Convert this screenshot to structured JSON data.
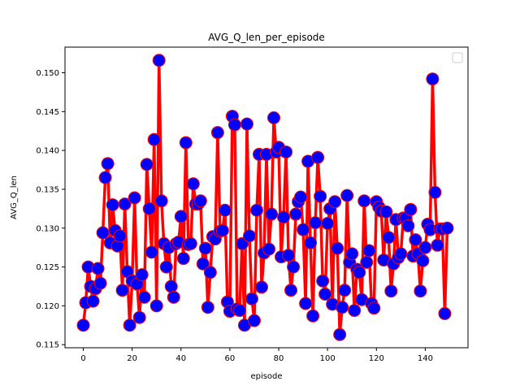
{
  "chart_data": {
    "type": "line",
    "title": "AVG_Q_len_per_episode",
    "xlabel": "episode",
    "ylabel": "AVG_Q_len",
    "xlim": [
      -7.5,
      157.5
    ],
    "ylim": [
      0.1146,
      0.1533
    ],
    "xticks": [
      0,
      20,
      40,
      60,
      80,
      100,
      120,
      140
    ],
    "yticks": [
      0.115,
      0.12,
      0.125,
      0.13,
      0.135,
      0.14,
      0.145,
      0.15
    ],
    "ytick_labels": [
      "0.115",
      "0.120",
      "0.125",
      "0.130",
      "0.135",
      "0.140",
      "0.145",
      "0.150"
    ],
    "grid": false,
    "legend": {
      "placement": "top-right",
      "entries": []
    },
    "series": [
      {
        "line_color": "#ff0000",
        "marker_face_color": "#0000ff",
        "marker_edge_color": "#ff0000",
        "x": [
          0,
          1,
          2,
          3,
          4,
          5,
          6,
          7,
          8,
          9,
          10,
          11,
          12,
          13,
          14,
          15,
          16,
          17,
          18,
          19,
          20,
          21,
          22,
          23,
          24,
          25,
          26,
          27,
          28,
          29,
          30,
          31,
          32,
          33,
          34,
          35,
          36,
          37,
          38,
          39,
          40,
          41,
          42,
          43,
          44,
          45,
          46,
          47,
          48,
          49,
          50,
          51,
          52,
          53,
          54,
          55,
          56,
          57,
          58,
          59,
          60,
          61,
          62,
          63,
          64,
          65,
          66,
          67,
          68,
          69,
          70,
          71,
          72,
          73,
          74,
          75,
          76,
          77,
          78,
          79,
          80,
          81,
          82,
          83,
          84,
          85,
          86,
          87,
          88,
          89,
          90,
          91,
          92,
          93,
          94,
          95,
          96,
          97,
          98,
          99,
          100,
          101,
          102,
          103,
          104,
          105,
          106,
          107,
          108,
          109,
          110,
          111,
          112,
          113,
          114,
          115,
          116,
          117,
          118,
          119,
          120,
          121,
          122,
          123,
          124,
          125,
          126,
          127,
          128,
          129,
          130,
          131,
          132,
          133,
          134,
          135,
          136,
          137,
          138,
          139,
          140,
          141,
          142,
          143,
          144,
          145,
          146,
          147,
          148,
          149
        ],
        "y": [
          0.1175,
          0.1204,
          0.125,
          0.1225,
          0.1206,
          0.1222,
          0.1248,
          0.1229,
          0.1294,
          0.1365,
          0.1383,
          0.1281,
          0.133,
          0.1297,
          0.1277,
          0.129,
          0.122,
          0.1331,
          0.1244,
          0.1175,
          0.1232,
          0.1339,
          0.1228,
          0.1185,
          0.124,
          0.1211,
          0.1382,
          0.1325,
          0.1269,
          0.1414,
          0.12,
          0.1516,
          0.1335,
          0.128,
          0.125,
          0.1275,
          0.1225,
          0.1211,
          0.128,
          0.1282,
          0.1315,
          0.1261,
          0.141,
          0.1279,
          0.128,
          0.1357,
          0.1331,
          0.1331,
          0.1335,
          0.1254,
          0.1274,
          0.1198,
          0.1243,
          0.1289,
          0.1286,
          0.1423,
          0.1296,
          0.1297,
          0.1323,
          0.1205,
          0.1193,
          0.1444,
          0.1433,
          0.1196,
          0.1194,
          0.128,
          0.1175,
          0.1434,
          0.129,
          0.1209,
          0.1181,
          0.1323,
          0.1395,
          0.1224,
          0.1268,
          0.1395,
          0.1273,
          0.1318,
          0.1442,
          0.1398,
          0.1404,
          0.1263,
          0.1314,
          0.1398,
          0.1265,
          0.122,
          0.125,
          0.1318,
          0.1334,
          0.134,
          0.1298,
          0.1203,
          0.1386,
          0.1281,
          0.1187,
          0.1307,
          0.1391,
          0.1341,
          0.1232,
          0.1215,
          0.1306,
          0.1325,
          0.1202,
          0.1334,
          0.1274,
          0.1163,
          0.1198,
          0.122,
          0.1342,
          0.1256,
          0.1267,
          0.1194,
          0.1247,
          0.1243,
          0.1208,
          0.1335,
          0.1256,
          0.1271,
          0.1203,
          0.1197,
          0.1334,
          0.1327,
          0.1322,
          0.1259,
          0.1321,
          0.1288,
          0.1219,
          0.1254,
          0.1311,
          0.1262,
          0.1267,
          0.1313,
          0.1313,
          0.1303,
          0.1324,
          0.1264,
          0.1285,
          0.1267,
          0.1219,
          0.1258,
          0.1275,
          0.1305,
          0.1298,
          0.1492,
          0.1346,
          0.1278,
          0.1299,
          0.1299,
          0.119,
          0.13
        ]
      }
    ]
  }
}
